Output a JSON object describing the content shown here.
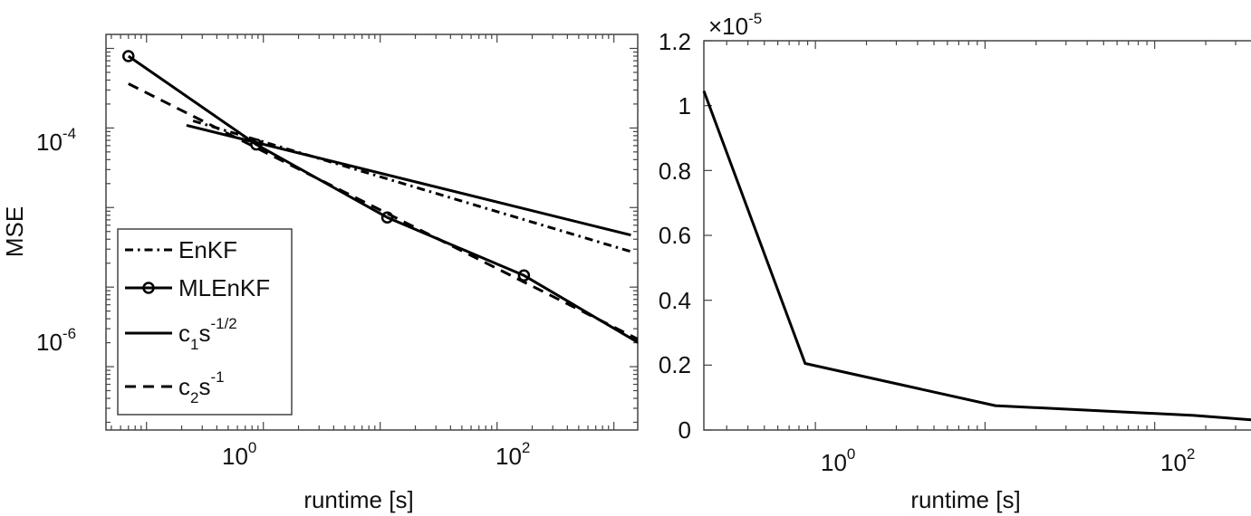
{
  "chart_data": [
    {
      "type": "line",
      "xscale": "log",
      "yscale": "log",
      "xlabel": "runtime [s]",
      "ylabel": "MSE",
      "xlim": [
        0.045,
        1600
      ],
      "ylim": [
        1.6e-08,
        0.0015
      ],
      "x_ticks": [
        {
          "base": "10",
          "exp": "0",
          "value": 1
        },
        {
          "base": "10",
          "exp": "2",
          "value": 100
        }
      ],
      "y_ticks": [
        {
          "base": "10",
          "exp": "-4",
          "value": 0.0001
        },
        {
          "base": "10",
          "exp": "-6",
          "value": 1e-06
        }
      ],
      "grid": false,
      "legend_position": "bottom-left",
      "series": [
        {
          "name": "EnKF",
          "style": "dashdot",
          "marker": "none",
          "x": [
            0.25,
            1400
          ],
          "y": [
            0.000123,
            2.8e-06
          ]
        },
        {
          "name": "MLEnKF",
          "style": "solid",
          "marker": "circle",
          "x": [
            0.07,
            0.87,
            11.5,
            170,
            2100
          ],
          "y": [
            0.0008,
            6.2e-05,
            7.5e-06,
            1.4e-06,
            1.6e-07
          ]
        },
        {
          "name": "c1s-1/2",
          "legend_main": "c",
          "legend_sub": "1",
          "legend_mid": "s",
          "legend_sup": "-1/2",
          "style": "solid",
          "marker": "none",
          "x": [
            0.22,
            1400
          ],
          "y": [
            0.000108,
            4.5e-06
          ]
        },
        {
          "name": "c2s-1",
          "legend_main": "c",
          "legend_sub": "2",
          "legend_mid": "s",
          "legend_sup": "-1",
          "style": "dashed",
          "marker": "none",
          "x": [
            0.07,
            1850
          ],
          "y": [
            0.00036,
            2e-07
          ]
        }
      ]
    },
    {
      "type": "line",
      "xscale": "log",
      "yscale": "linear",
      "xlabel": "runtime [s]",
      "ylabel": "",
      "y_multiplier": {
        "base": "×10",
        "exp": "-5"
      },
      "xlim": [
        0.22,
        450
      ],
      "ylim": [
        0,
        1.2
      ],
      "x_ticks": [
        {
          "base": "10",
          "exp": "0",
          "value": 1
        },
        {
          "base": "10",
          "exp": "2",
          "value": 100
        }
      ],
      "y_ticks": [
        "0",
        "0.2",
        "0.4",
        "0.6",
        "0.8",
        "1",
        "1.2"
      ],
      "grid": false,
      "series": [
        {
          "style": "solid",
          "x": [
            0.22,
            0.87,
            11.5,
            170,
            450
          ],
          "y": [
            1.045,
            0.205,
            0.075,
            0.045,
            0.028
          ]
        }
      ]
    }
  ]
}
